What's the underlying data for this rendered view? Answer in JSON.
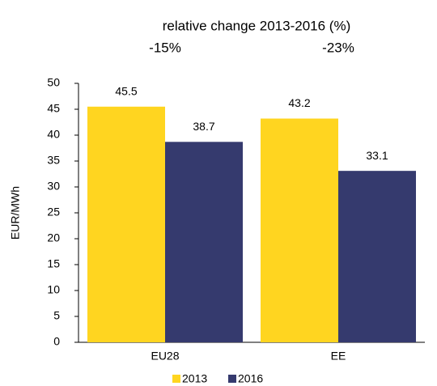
{
  "chart_data": {
    "type": "bar",
    "title": "relative change 2013-2016 (%)",
    "annotations": [
      "-15%",
      "-23%"
    ],
    "y_label": "EUR/MWh",
    "categories": [
      "EU28",
      "EE"
    ],
    "series": [
      {
        "name": "2013",
        "color": "#ffd520",
        "values": [
          45.5,
          43.2
        ]
      },
      {
        "name": "2016",
        "color": "#353a6e",
        "values": [
          38.7,
          33.1
        ]
      }
    ],
    "ylim": [
      0,
      50
    ],
    "yticks": [
      0,
      5,
      10,
      15,
      20,
      25,
      30,
      35,
      40,
      45,
      50
    ],
    "grid": false,
    "legend": "bottom"
  }
}
